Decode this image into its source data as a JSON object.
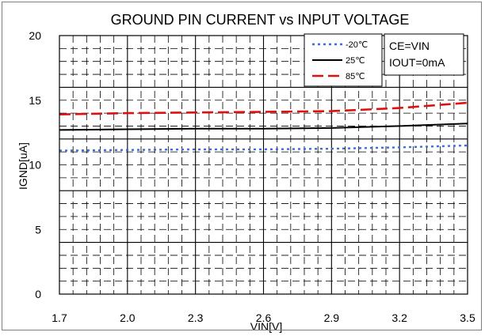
{
  "chart_data": {
    "type": "line",
    "title": "GROUND PIN CURRENT vs INPUT VOLTAGE",
    "xlabel": "VIN[V]",
    "ylabel": "IGND[uA]",
    "xlim": [
      1.7,
      3.5
    ],
    "ylim": [
      0,
      20
    ],
    "x_ticks": [
      "1.7",
      "2.0",
      "2.3",
      "2.6",
      "2.9",
      "3.2",
      "3.5"
    ],
    "y_ticks": [
      "0",
      "5",
      "10",
      "15",
      "20"
    ],
    "grid": true,
    "legend_position": "top-right",
    "conditions": [
      "CE=VIN",
      "IOUT=0mA"
    ],
    "series": [
      {
        "name": "-20℃",
        "color": "#3c6fd6",
        "dash": "dotted",
        "x": [
          1.7,
          2.0,
          2.3,
          2.6,
          2.9,
          3.2,
          3.5
        ],
        "y": [
          11.1,
          11.15,
          11.2,
          11.2,
          11.25,
          11.35,
          11.5
        ]
      },
      {
        "name": "25℃",
        "color": "#000000",
        "dash": "solid",
        "x": [
          1.7,
          2.0,
          2.3,
          2.6,
          2.9,
          3.2,
          3.5
        ],
        "y": [
          12.7,
          12.75,
          12.8,
          12.8,
          12.85,
          13.0,
          13.2
        ]
      },
      {
        "name": "85℃",
        "color": "#e01010",
        "dash": "dashed",
        "x": [
          1.7,
          2.0,
          2.3,
          2.6,
          2.9,
          3.2,
          3.5
        ],
        "y": [
          13.9,
          14.0,
          14.05,
          14.1,
          14.15,
          14.4,
          14.8
        ]
      }
    ]
  }
}
